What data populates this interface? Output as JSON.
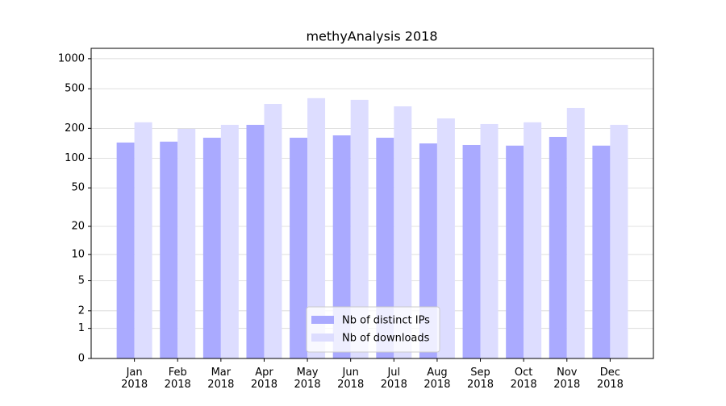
{
  "chart_data": {
    "type": "bar",
    "title": "methyAnalysis 2018",
    "categories": [
      "Jan\n2018",
      "Feb\n2018",
      "Mar\n2018",
      "Apr\n2018",
      "May\n2018",
      "Jun\n2018",
      "Jul\n2018",
      "Aug\n2018",
      "Sep\n2018",
      "Oct\n2018",
      "Nov\n2018",
      "Dec\n2018"
    ],
    "series": [
      {
        "name": "Nb of distinct IPs",
        "color": "#aaaaff",
        "values": [
          144,
          147,
          161,
          217,
          161,
          170,
          161,
          141,
          136,
          134,
          164,
          134
        ]
      },
      {
        "name": "Nb of downloads",
        "color": "#ddddff",
        "values": [
          230,
          198,
          217,
          352,
          402,
          387,
          333,
          252,
          221,
          230,
          321,
          217
        ]
      }
    ],
    "yscale": "log1p",
    "ylim": [
      0,
      1270
    ],
    "yticks": [
      0,
      1,
      2,
      5,
      10,
      20,
      50,
      100,
      200,
      500,
      1000
    ],
    "grid": true,
    "legend": "lower center"
  }
}
